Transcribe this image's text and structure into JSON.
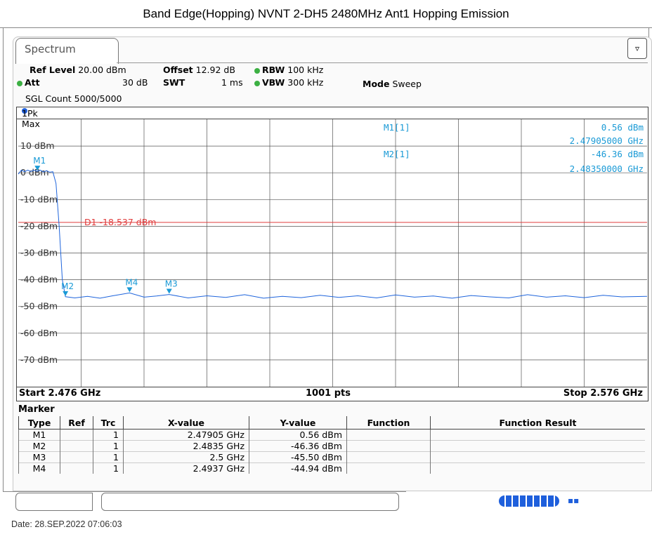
{
  "page_title": "Band Edge(Hopping) NVNT 2-DH5 2480MHz Ant1 Hopping Emission",
  "tab": "Spectrum",
  "settings": {
    "ref_level_label": "Ref Level",
    "ref_level_value": "20.00 dBm",
    "offset_label": "Offset",
    "offset_value": "12.92 dB",
    "rbw_label": "RBW",
    "rbw_value": "100 kHz",
    "att_label": "Att",
    "att_value": "30 dB",
    "swt_label": "SWT",
    "swt_value": "1 ms",
    "vbw_label": "VBW",
    "vbw_value": "300 kHz",
    "mode_label": "Mode",
    "mode_value": "Sweep",
    "sgl_count": "SGL Count 5000/5000"
  },
  "trace_label": "1Pk Max",
  "colors": {
    "trace": "#1e64dc",
    "marker": "#1a9ad6",
    "display_line": "#e03c3c",
    "grid": "#555555"
  },
  "chart_data": {
    "type": "line",
    "x_start_ghz": 2.476,
    "x_stop_ghz": 2.576,
    "ylim": [
      -80,
      20
    ],
    "y_ticks": [
      "10 dBm",
      "0 dBm",
      "-10 dBm",
      "-20 dBm",
      "-30 dBm",
      "-40 dBm",
      "-50 dBm",
      "-60 dBm",
      "-70 dBm"
    ],
    "display_line": {
      "label": "D1 -18.537 dBm",
      "value": -18.537
    },
    "trace": {
      "in_band_level_dbm": 1.0,
      "band_edge_ghz": 2.4835,
      "noise_floor_dbm": -46.5,
      "points": [
        [
          2.476,
          -0.5
        ],
        [
          2.4765,
          1.0
        ],
        [
          2.477,
          0.4
        ],
        [
          2.4775,
          1.0
        ],
        [
          2.478,
          0.5
        ],
        [
          2.4785,
          1.0
        ],
        [
          2.479,
          0.56
        ],
        [
          2.4795,
          1.0
        ],
        [
          2.48,
          0.3
        ],
        [
          2.4805,
          0.8
        ],
        [
          2.481,
          0.2
        ],
        [
          2.4815,
          0.4
        ],
        [
          2.482,
          -4
        ],
        [
          2.4825,
          -20
        ],
        [
          2.483,
          -40
        ],
        [
          2.4835,
          -46.36
        ],
        [
          2.485,
          -46.8
        ],
        [
          2.487,
          -46.2
        ],
        [
          2.489,
          -46.9
        ],
        [
          2.491,
          -46.0
        ],
        [
          2.4937,
          -44.94
        ],
        [
          2.496,
          -46.5
        ],
        [
          2.498,
          -46.1
        ],
        [
          2.5,
          -45.5
        ],
        [
          2.503,
          -46.8
        ],
        [
          2.506,
          -46.0
        ],
        [
          2.509,
          -46.6
        ],
        [
          2.512,
          -45.6
        ],
        [
          2.515,
          -46.9
        ],
        [
          2.518,
          -46.2
        ],
        [
          2.521,
          -46.7
        ],
        [
          2.524,
          -45.8
        ],
        [
          2.527,
          -46.6
        ],
        [
          2.53,
          -46.0
        ],
        [
          2.533,
          -46.8
        ],
        [
          2.536,
          -45.7
        ],
        [
          2.539,
          -46.5
        ],
        [
          2.542,
          -46.1
        ],
        [
          2.545,
          -46.9
        ],
        [
          2.548,
          -45.9
        ],
        [
          2.551,
          -46.4
        ],
        [
          2.554,
          -46.8
        ],
        [
          2.557,
          -45.6
        ],
        [
          2.56,
          -46.5
        ],
        [
          2.563,
          -46.0
        ],
        [
          2.566,
          -46.7
        ],
        [
          2.569,
          -45.8
        ],
        [
          2.572,
          -46.4
        ],
        [
          2.576,
          -46.2
        ]
      ]
    },
    "markers": [
      {
        "name": "M1",
        "x_ghz": 2.47905,
        "y_dbm": 0.56
      },
      {
        "name": "M2",
        "x_ghz": 2.4835,
        "y_dbm": -46.36
      },
      {
        "name": "M3",
        "x_ghz": 2.5,
        "y_dbm": -45.5
      },
      {
        "name": "M4",
        "x_ghz": 2.4937,
        "y_dbm": -44.94
      }
    ]
  },
  "readout": {
    "m1_label": "M1[1]",
    "m1_level": "0.56 dBm",
    "m1_freq": "2.47905000 GHz",
    "m2_label": "M2[1]",
    "m2_level": "-46.36 dBm",
    "m2_freq": "2.48350000 GHz"
  },
  "axis_footer": {
    "start": "Start 2.476 GHz",
    "points": "1001 pts",
    "stop": "Stop 2.576 GHz"
  },
  "marker_table": {
    "title": "Marker",
    "headers": [
      "Type",
      "Ref",
      "Trc",
      "X-value",
      "Y-value",
      "Function",
      "Function Result"
    ],
    "rows": [
      [
        "M1",
        "",
        "1",
        "2.47905 GHz",
        "0.56 dBm",
        "",
        ""
      ],
      [
        "M2",
        "",
        "1",
        "2.4835 GHz",
        "-46.36 dBm",
        "",
        ""
      ],
      [
        "M3",
        "",
        "1",
        "2.5 GHz",
        "-45.50 dBm",
        "",
        ""
      ],
      [
        "M4",
        "",
        "1",
        "2.4937 GHz",
        "-44.94 dBm",
        "",
        ""
      ]
    ]
  },
  "date": "Date: 28.SEP.2022  07:06:03"
}
